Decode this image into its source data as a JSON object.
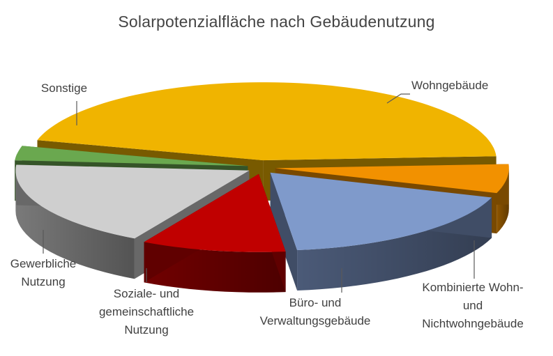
{
  "chart_data": {
    "type": "pie",
    "style": "3d-exploded",
    "title": "Solarpotenzialfläche nach Gebäudenutzung",
    "slices": [
      {
        "label": "Wohngebäude",
        "label_lines": [
          "Wohngebäude"
        ],
        "value": 45,
        "color": "#F0B400"
      },
      {
        "label": "Kombinierte Wohn- und Nichtwohngebäude",
        "label_lines": [
          "Kombinierte Wohn-",
          "und",
          "Nichtwohngebäude"
        ],
        "value": 6,
        "color": "#F29100"
      },
      {
        "label": "Büro- und Verwaltungsgebäude",
        "label_lines": [
          "Büro- und",
          "Verwaltungsgebäude"
        ],
        "value": 18,
        "color": "#7F9ACB"
      },
      {
        "label": "Soziale- und gemeinschaftliche Nutzung",
        "label_lines": [
          "Soziale- und",
          "gemeinschaftliche",
          "Nutzung"
        ],
        "value": 10,
        "color": "#C00000"
      },
      {
        "label": "Gewerbliche Nutzung",
        "label_lines": [
          "Gewerbliche",
          "Nutzung"
        ],
        "value": 18,
        "color": "#CFCFCF"
      },
      {
        "label": "Sonstige",
        "label_lines": [
          "Sonstige"
        ],
        "value": 3,
        "color": "#6AA84F"
      }
    ]
  }
}
